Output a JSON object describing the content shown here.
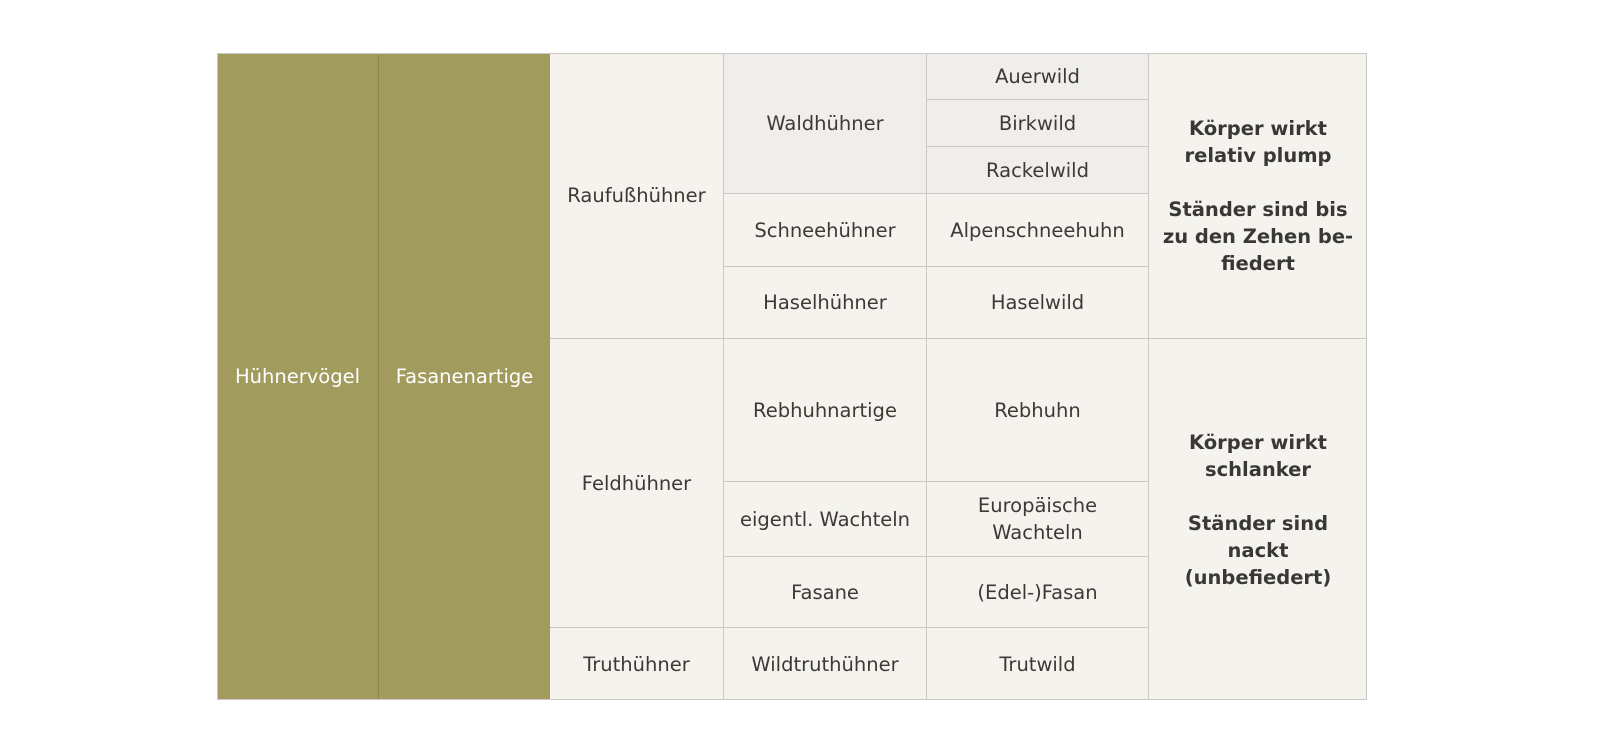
{
  "order": "Hühnervögel",
  "family": "Fasanenartige",
  "groups": {
    "rauhfuss": "Raufußhühner",
    "feld": "Feldhühner",
    "trut": "Truthühner"
  },
  "subgroups": {
    "wald": "Waldhühner",
    "schnee": "Schneehühner",
    "hasel": "Haselhühner",
    "rebhuhnartige": "Rebhuhnartige",
    "wachteln": "eigentl. Wachteln",
    "fasane": "Fasane",
    "wildtrut": "Wildtruthühner"
  },
  "species": {
    "auerwild": "Auerwild",
    "birkwild": "Birkwild",
    "rackelwild": "Rackelwild",
    "alpenschneehuhn": "Alpenschneehuhn",
    "haselwild": "Haselwild",
    "rebhuhn": "Rebhuhn",
    "wachtel_line1": "Europäische",
    "wachtel_line2": "Wachteln",
    "edelfasan": "(Edel-)Fasan",
    "trutwild": "Trutwild"
  },
  "notes": {
    "upper": {
      "body_line1": "Körper wirkt",
      "body_line2": "relativ plump",
      "legs_line1": "Ständer sind bis",
      "legs_line2": "zu den Zehen be-",
      "legs_line3": "fiedert"
    },
    "lower": {
      "body_line1": "Körper wirkt",
      "body_line2": "schlanker",
      "legs_line1": "Ständer sind",
      "legs_line2": "nackt",
      "legs_line3": "(unbefiedert)"
    }
  }
}
